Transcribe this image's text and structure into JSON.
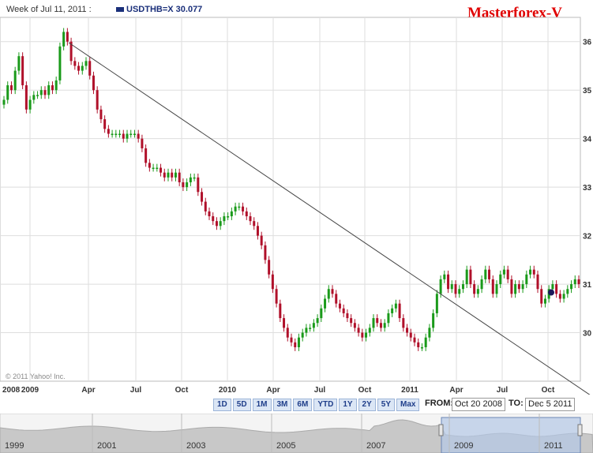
{
  "header": {
    "week_label": "Week of Jul 11, 2011 :",
    "symbol_label": "USDTHB=X",
    "symbol_value": "30.077",
    "brand": "Masterforex-V"
  },
  "copyright": "© 2011 Yahoo! Inc.",
  "range_buttons": [
    "1D",
    "5D",
    "1M",
    "3M",
    "6M",
    "YTD",
    "1Y",
    "2Y",
    "5Y",
    "Max"
  ],
  "from_label": "FROM:",
  "from_date": "Oct 20 2008",
  "to_label": "TO:",
  "to_date": "Dec 5 2011",
  "navigator_years": [
    "1999",
    "2001",
    "2003",
    "2005",
    "2007",
    "2009",
    "2011"
  ],
  "colors": {
    "up": "#1a9a1a",
    "down": "#b0102a",
    "grid": "#dedede",
    "nav_fill": "#c8c8c8",
    "nav_sel": "#b3c7e6",
    "trendline": "#444444",
    "marker": "#1a1a5a"
  },
  "chart_data": {
    "type": "candlestick",
    "series_name": "USDTHB=X",
    "x_tick_labels": [
      "2008",
      "2009",
      "Apr",
      "Jul",
      "Oct",
      "2010",
      "Apr",
      "Jul",
      "Oct",
      "2011",
      "Apr",
      "Jul",
      "Oct"
    ],
    "y_tick_labels": [
      "30",
      "31",
      "32",
      "33",
      "34",
      "35",
      "36"
    ],
    "ylim": [
      29.0,
      36.5
    ],
    "x_range": [
      "2008-11-17",
      "2011-12-05"
    ],
    "grid": true,
    "closes": [
      34.8,
      35.1,
      35.0,
      35.4,
      35.7,
      35.1,
      34.6,
      34.8,
      34.9,
      34.9,
      35.0,
      34.9,
      35.1,
      35.0,
      35.2,
      35.9,
      36.2,
      36.0,
      35.6,
      35.5,
      35.4,
      35.5,
      35.6,
      35.3,
      35.0,
      34.6,
      34.4,
      34.2,
      34.1,
      34.1,
      34.1,
      34.1,
      34.0,
      34.1,
      34.1,
      34.1,
      34.0,
      33.8,
      33.5,
      33.4,
      33.4,
      33.4,
      33.3,
      33.2,
      33.3,
      33.2,
      33.3,
      33.1,
      33.0,
      33.1,
      33.2,
      33.2,
      32.9,
      32.7,
      32.5,
      32.4,
      32.3,
      32.2,
      32.3,
      32.4,
      32.4,
      32.5,
      32.6,
      32.6,
      32.5,
      32.4,
      32.3,
      32.2,
      32.0,
      31.8,
      31.5,
      31.2,
      30.9,
      30.6,
      30.3,
      30.1,
      29.9,
      29.8,
      29.7,
      29.9,
      30.0,
      30.1,
      30.1,
      30.2,
      30.3,
      30.5,
      30.7,
      30.9,
      30.8,
      30.6,
      30.5,
      30.4,
      30.3,
      30.2,
      30.1,
      30.0,
      29.9,
      30.0,
      30.1,
      30.3,
      30.2,
      30.1,
      30.2,
      30.4,
      30.5,
      30.6,
      30.3,
      30.1,
      30.0,
      29.9,
      29.8,
      29.7,
      29.7,
      29.9,
      30.1,
      30.4,
      30.8,
      31.1,
      31.2,
      30.9,
      31.0,
      30.8,
      30.9,
      31.0,
      31.3,
      31.0,
      30.8,
      30.9,
      31.1,
      31.3,
      31.1,
      30.8,
      31.0,
      31.2,
      31.3,
      31.1,
      30.8,
      31.0,
      30.9,
      31.0,
      31.2,
      31.3,
      31.2,
      30.9,
      30.6,
      30.7,
      30.9,
      31.0,
      30.8,
      30.7,
      30.8,
      30.9,
      31.0,
      31.1,
      31.0
    ]
  }
}
